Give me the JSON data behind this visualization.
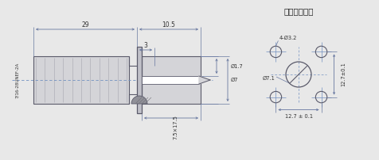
{
  "title_right": "安装开孔尺寸",
  "label_left": "7/16-28UNEF-2A",
  "dim_29": "29",
  "dim_10_5": "10.5",
  "dim_3": "3",
  "dim_phi17": "Ø1.7",
  "dim_phi7": "Ø7",
  "dim_75x175": "7.5×17.5",
  "dim_4phi32": "4-Ø3.2",
  "dim_phi71": "Ø7.1",
  "dim_127_01_v": "12.7±0.1",
  "dim_127_01_h": "12.7 ± 0.1",
  "line_color": "#6878a0",
  "dim_color": "#6878a0",
  "bg_color": "#e8e8e8",
  "draw_color": "#5a5a6a",
  "face_color": "#d4d4d8",
  "face_color2": "#c0c0c8"
}
